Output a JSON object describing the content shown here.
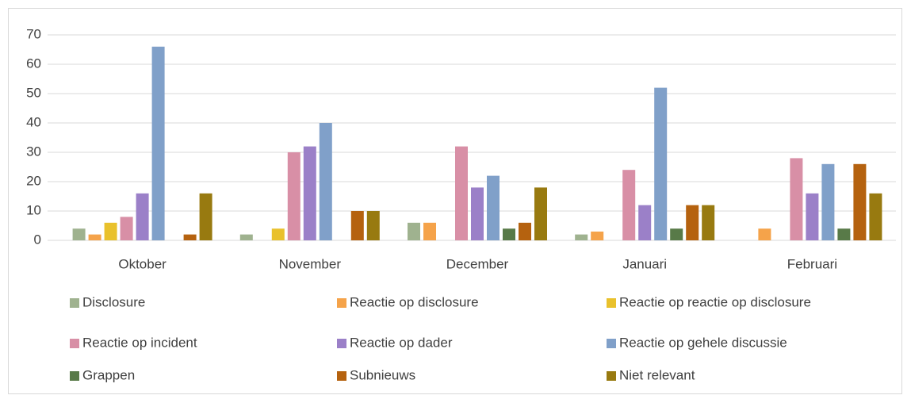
{
  "chart_data": {
    "type": "bar",
    "categories": [
      "Oktober",
      "November",
      "December",
      "Januari",
      "Februari"
    ],
    "series": [
      {
        "name": "Disclosure",
        "color": "#9fb28f",
        "values": [
          4,
          2,
          6,
          2,
          0
        ]
      },
      {
        "name": "Reactie op disclosure",
        "color": "#f5a34a",
        "values": [
          2,
          0,
          6,
          3,
          4
        ]
      },
      {
        "name": "Reactie op reactie op disclosure",
        "color": "#e9c12c",
        "values": [
          6,
          4,
          0,
          0,
          0
        ]
      },
      {
        "name": "Reactie op incident",
        "color": "#d88fa6",
        "values": [
          8,
          30,
          32,
          24,
          28
        ]
      },
      {
        "name": "Reactie op dader",
        "color": "#9b80c8",
        "values": [
          16,
          32,
          18,
          12,
          16
        ]
      },
      {
        "name": "Reactie op gehele discussie",
        "color": "#80a0c9",
        "values": [
          66,
          40,
          22,
          52,
          26
        ]
      },
      {
        "name": "Grappen",
        "color": "#587a48",
        "values": [
          0,
          0,
          4,
          4,
          4
        ]
      },
      {
        "name": "Subnieuws",
        "color": "#b5620f",
        "values": [
          2,
          10,
          6,
          12,
          26
        ]
      },
      {
        "name": "Niet relevant",
        "color": "#987a10",
        "values": [
          16,
          10,
          18,
          12,
          16
        ]
      }
    ],
    "ylim": [
      0,
      70
    ],
    "yticks": [
      0,
      10,
      20,
      30,
      40,
      50,
      60,
      70
    ],
    "grid": true,
    "legend": "bottom"
  }
}
